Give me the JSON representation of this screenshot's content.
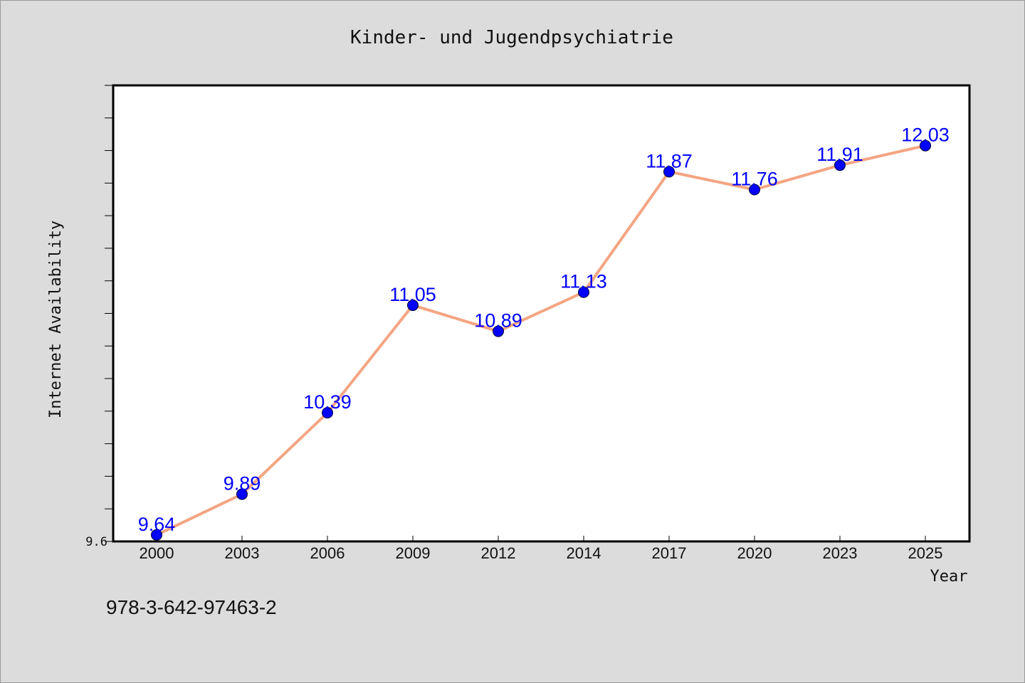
{
  "chart_data": {
    "type": "line",
    "title": "Kinder- und Jugendpsychiatrie",
    "xlabel": "Year",
    "ylabel": "Internet Availability",
    "categories": [
      "2000",
      "2003",
      "2006",
      "2009",
      "2012",
      "2014",
      "2017",
      "2020",
      "2023",
      "2025"
    ],
    "series": [
      {
        "values": [
          9.64,
          9.89,
          10.39,
          11.05,
          10.89,
          11.13,
          11.87,
          11.76,
          11.91,
          12.03
        ]
      }
    ],
    "data_labels": [
      "9.64",
      "9.89",
      "10.39",
      "11.05",
      "10.89",
      "11.13",
      "11.87",
      "11.76",
      "11.91",
      "12.03"
    ],
    "y_tick_labels": [
      "9.6"
    ],
    "ylim": [
      9.6,
      12.4
    ],
    "grid": false,
    "legend": "none",
    "colors": {
      "line": "#f4a582",
      "marker": "#0000ff",
      "data_label": "#0000ff",
      "background": "#dcdcdc",
      "plot_background": "#ffffff"
    }
  },
  "footer_text": "978-3-642-97463-2"
}
